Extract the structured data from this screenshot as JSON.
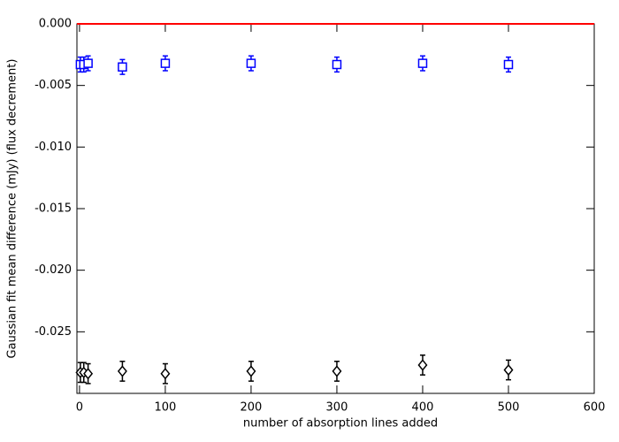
{
  "chart_data": {
    "type": "scatter",
    "xlabel": "number of absorption lines added",
    "ylabel": "Gaussian fit mean difference (mJy) (flux decrement)",
    "xlim": [
      -3,
      600
    ],
    "xticks": [
      0,
      100,
      200,
      300,
      400,
      500,
      600
    ],
    "ylim": [
      -0.03,
      0.0
    ],
    "yticks": [
      {
        "value": 0.0,
        "label": "0.000"
      },
      {
        "value": -0.005,
        "label": "-0.005"
      },
      {
        "value": -0.01,
        "label": "-0.010"
      },
      {
        "value": -0.015,
        "label": "-0.015"
      },
      {
        "value": -0.02,
        "label": "-0.020"
      },
      {
        "value": -0.025,
        "label": "-0.025"
      }
    ],
    "reference_line": {
      "value": 0.0,
      "color": "#ff0000"
    },
    "series": [
      {
        "marker": "square",
        "color": "#0000ff",
        "x": [
          1,
          5,
          10,
          50,
          100,
          200,
          300,
          400,
          500
        ],
        "values": [
          -0.0033,
          -0.0033,
          -0.0032,
          -0.0035,
          -0.0032,
          -0.0032,
          -0.0033,
          -0.0032,
          -0.0033
        ],
        "errors": [
          0.0006,
          0.0006,
          0.0006,
          0.0006,
          0.0006,
          0.0006,
          0.0006,
          0.0006,
          0.0006
        ]
      },
      {
        "marker": "diamond",
        "color": "#000000",
        "x": [
          1,
          5,
          10,
          50,
          100,
          200,
          300,
          400,
          500
        ],
        "values": [
          -0.0283,
          -0.0283,
          -0.0284,
          -0.0282,
          -0.0284,
          -0.0282,
          -0.0282,
          -0.0277,
          -0.0281
        ],
        "errors": [
          0.0008,
          0.0008,
          0.0008,
          0.0008,
          0.0008,
          0.0008,
          0.0008,
          0.0008,
          0.0008
        ]
      }
    ]
  }
}
